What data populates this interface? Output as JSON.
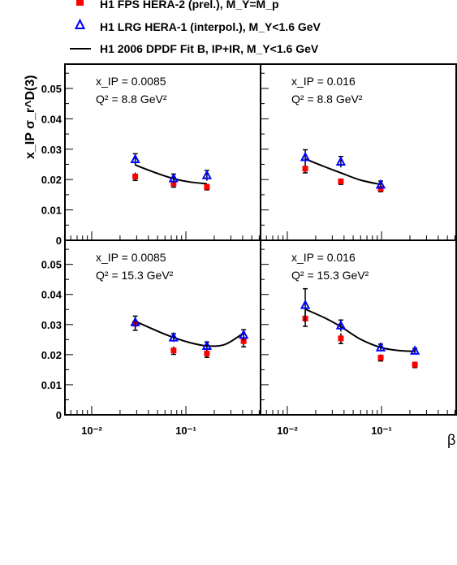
{
  "chart_data": {
    "type": "scatter",
    "x_axis_label": "β",
    "y_axis_label": "x_IP σ_r^D(3)",
    "x_scale": "log",
    "ylim": [
      0,
      0.058
    ],
    "y_ticks": [
      "0",
      "0.01",
      "0.02",
      "0.03",
      "0.04",
      "0.05"
    ],
    "x_ticks": [
      "10⁻²",
      "10⁻¹"
    ],
    "legend": [
      {
        "key": "fps",
        "text": "H1 FPS HERA-2 (prel.),  M_Y=M_p",
        "marker": "filled-square",
        "color": "#ff0000"
      },
      {
        "key": "lrg",
        "text": "H1 LRG HERA-1 (interpol.),  M_Y<1.6 GeV",
        "marker": "open-triangle",
        "color": "#0000ff"
      },
      {
        "key": "fit",
        "text": "H1 2006 DPDF Fit B, IP+IR,  M_Y<1.6 GeV",
        "marker": "line",
        "color": "#000000"
      }
    ],
    "panels": [
      {
        "id": "top-left",
        "labels": [
          "x_IP = 0.0085",
          "Q² = 8.8 GeV²"
        ],
        "xlim": [
          0.0052,
          0.62
        ],
        "fps": [
          {
            "x": 0.029,
            "y": 0.021,
            "err": 0.0013
          },
          {
            "x": 0.074,
            "y": 0.0187,
            "err": 0.0012
          },
          {
            "x": 0.167,
            "y": 0.0176,
            "err": 0.001
          }
        ],
        "lrg": [
          {
            "x": 0.029,
            "y": 0.0266,
            "err": 0.0019
          },
          {
            "x": 0.074,
            "y": 0.0203,
            "err": 0.0015
          },
          {
            "x": 0.167,
            "y": 0.0213,
            "err": 0.0017
          }
        ],
        "fit": [
          {
            "x": 0.029,
            "y": 0.0248
          },
          {
            "x": 0.05,
            "y": 0.022
          },
          {
            "x": 0.074,
            "y": 0.0203
          },
          {
            "x": 0.11,
            "y": 0.0192
          },
          {
            "x": 0.167,
            "y": 0.0186
          }
        ]
      },
      {
        "id": "top-right",
        "labels": [
          "x_IP = 0.016",
          "Q² = 8.8 GeV²"
        ],
        "xlim": [
          0.0052,
          0.62
        ],
        "fps": [
          {
            "x": 0.0155,
            "y": 0.0236,
            "err": 0.0014
          },
          {
            "x": 0.037,
            "y": 0.0194,
            "err": 0.001
          },
          {
            "x": 0.098,
            "y": 0.017,
            "err": 0.001
          }
        ],
        "lrg": [
          {
            "x": 0.0155,
            "y": 0.0273,
            "err": 0.0025
          },
          {
            "x": 0.037,
            "y": 0.0258,
            "err": 0.0018
          },
          {
            "x": 0.098,
            "y": 0.0182,
            "err": 0.0013
          }
        ],
        "fit": [
          {
            "x": 0.0155,
            "y": 0.0268
          },
          {
            "x": 0.025,
            "y": 0.0242
          },
          {
            "x": 0.037,
            "y": 0.0222
          },
          {
            "x": 0.06,
            "y": 0.0198
          },
          {
            "x": 0.098,
            "y": 0.0184
          }
        ]
      },
      {
        "id": "bottom-left",
        "labels": [
          "x_IP = 0.0085",
          "Q² = 15.3 GeV²"
        ],
        "xlim": [
          0.0052,
          0.62
        ],
        "fps": [
          {
            "x": 0.029,
            "y": 0.0303,
            "err": 0.0022
          },
          {
            "x": 0.074,
            "y": 0.0214,
            "err": 0.0013
          },
          {
            "x": 0.167,
            "y": 0.0204,
            "err": 0.0013
          },
          {
            "x": 0.41,
            "y": 0.0245,
            "err": 0.0019
          }
        ],
        "lrg": [
          {
            "x": 0.029,
            "y": 0.0307,
            "err": 0.0021
          },
          {
            "x": 0.074,
            "y": 0.0256,
            "err": 0.0014
          },
          {
            "x": 0.167,
            "y": 0.0228,
            "err": 0.0014
          },
          {
            "x": 0.41,
            "y": 0.0265,
            "err": 0.0018
          }
        ],
        "fit": [
          {
            "x": 0.029,
            "y": 0.0311
          },
          {
            "x": 0.05,
            "y": 0.0278
          },
          {
            "x": 0.074,
            "y": 0.0257
          },
          {
            "x": 0.11,
            "y": 0.024
          },
          {
            "x": 0.167,
            "y": 0.0229
          },
          {
            "x": 0.26,
            "y": 0.0234
          },
          {
            "x": 0.41,
            "y": 0.0272
          }
        ]
      },
      {
        "id": "bottom-right",
        "labels": [
          "x_IP = 0.016",
          "Q² = 15.3 GeV²"
        ],
        "xlim": [
          0.0052,
          0.62
        ],
        "fps": [
          {
            "x": 0.0155,
            "y": 0.032,
            "err": 0.0026
          },
          {
            "x": 0.037,
            "y": 0.0254,
            "err": 0.0017
          },
          {
            "x": 0.098,
            "y": 0.019,
            "err": 0.0011
          },
          {
            "x": 0.226,
            "y": 0.0167,
            "err": 0.001
          }
        ],
        "lrg": [
          {
            "x": 0.0155,
            "y": 0.0364,
            "err": 0.0055
          },
          {
            "x": 0.037,
            "y": 0.0296,
            "err": 0.0019
          },
          {
            "x": 0.098,
            "y": 0.0223,
            "err": 0.0012
          },
          {
            "x": 0.226,
            "y": 0.0212,
            "err": 0.0009
          }
        ],
        "fit": [
          {
            "x": 0.0155,
            "y": 0.0351
          },
          {
            "x": 0.025,
            "y": 0.0322
          },
          {
            "x": 0.037,
            "y": 0.0293
          },
          {
            "x": 0.06,
            "y": 0.0251
          },
          {
            "x": 0.098,
            "y": 0.0224
          },
          {
            "x": 0.15,
            "y": 0.0214
          },
          {
            "x": 0.226,
            "y": 0.0211
          }
        ]
      }
    ]
  }
}
